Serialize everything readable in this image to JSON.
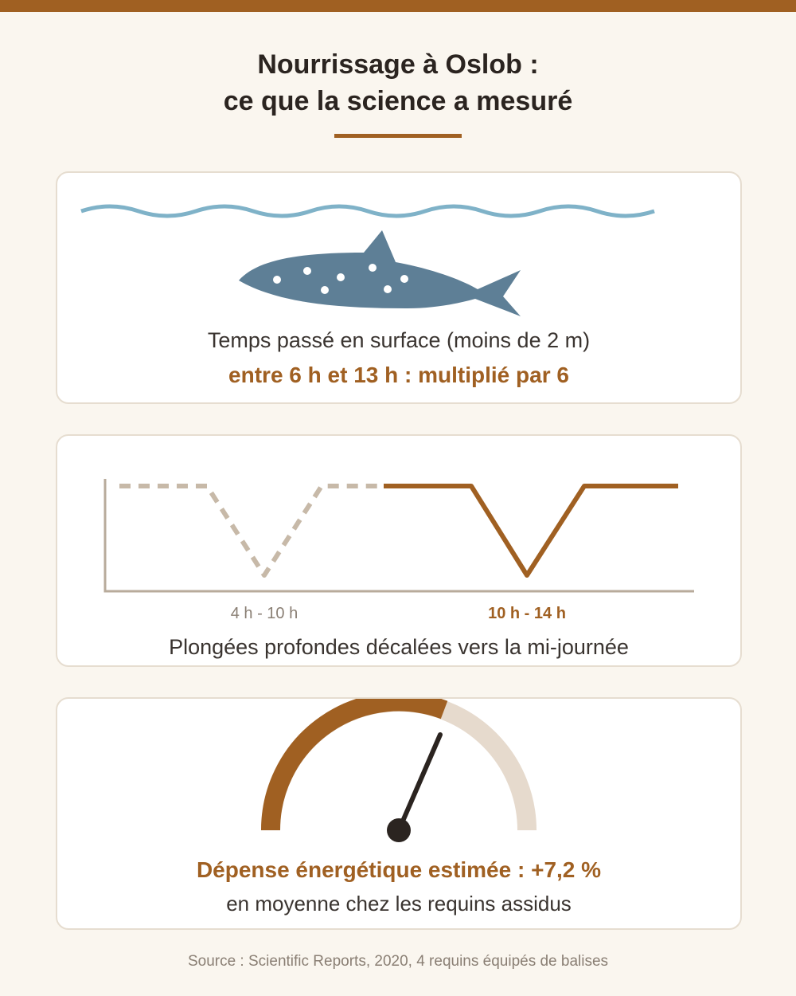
{
  "title": {
    "line1": "Nourrissage à Oslob :",
    "line2": "ce que la science a mesuré"
  },
  "colors": {
    "accent": "#a06022",
    "shark": "#5e7f96",
    "wave": "#7fb2c8",
    "muted": "#c7b9a8",
    "gauge_track": "#e6dacd",
    "text": "#2b2420"
  },
  "surface_card": {
    "icon": "whale-shark-icon",
    "label": "Temps passé en surface (moins de 2 m)",
    "highlight": "entre 6 h et 13 h : multiplié par 6"
  },
  "dive_card": {
    "before_label": "4 h - 10 h",
    "after_label": "10 h - 14 h",
    "caption": "Plongées profondes décalées vers la mi-journée"
  },
  "energy_card": {
    "icon": "gauge-icon",
    "headline": "Dépense énergétique estimée : +7,2 %",
    "subline": "en moyenne chez les requins assidus"
  },
  "source": "Source : Scientific Reports, 2020, 4 requins équipés de balises"
}
